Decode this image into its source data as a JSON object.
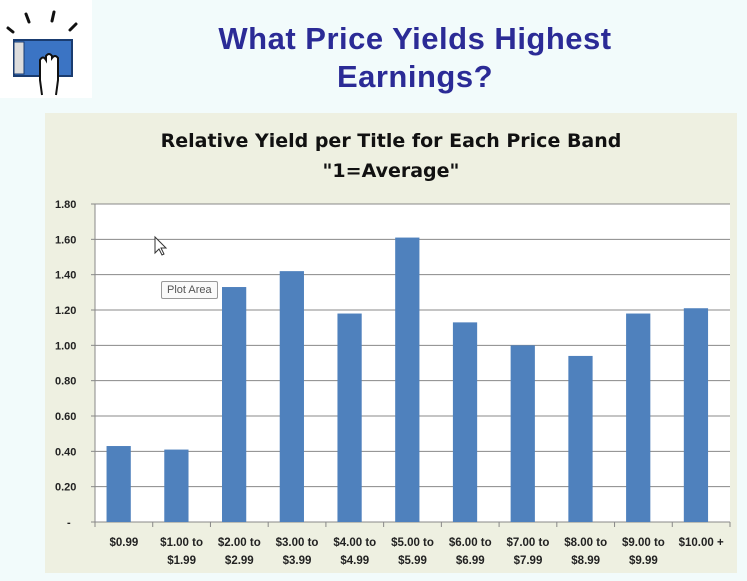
{
  "slide": {
    "title_line1": "What Price Yields Highest",
    "title_line2": "Earnings?",
    "logo_icon": "book-hand-icon"
  },
  "tooltip": "Plot Area",
  "chart_data": {
    "type": "bar",
    "title": "Relative Yield per Title for Each Price Band",
    "subtitle": "\"1=Average\"",
    "categories": [
      [
        "$0.99"
      ],
      [
        "$1.00 to",
        "$1.99"
      ],
      [
        "$2.00 to",
        "$2.99"
      ],
      [
        "$3.00 to",
        "$3.99"
      ],
      [
        "$4.00 to",
        "$4.99"
      ],
      [
        "$5.00 to",
        "$5.99"
      ],
      [
        "$6.00 to",
        "$6.99"
      ],
      [
        "$7.00  to",
        "$7.99"
      ],
      [
        "$8.00 to",
        "$8.99"
      ],
      [
        "$9.00 to",
        "$9.99"
      ],
      [
        "$10.00 +"
      ]
    ],
    "values": [
      0.43,
      0.41,
      1.33,
      1.42,
      1.18,
      1.61,
      1.13,
      1.0,
      0.94,
      1.18,
      1.21
    ],
    "ylim": [
      0,
      1.8
    ],
    "yticks": [
      "-",
      "0.20",
      "0.40",
      "0.60",
      "0.80",
      "1.00",
      "1.20",
      "1.40",
      "1.60",
      "1.80"
    ],
    "grid": true,
    "bar_color": "#4f81bd"
  }
}
